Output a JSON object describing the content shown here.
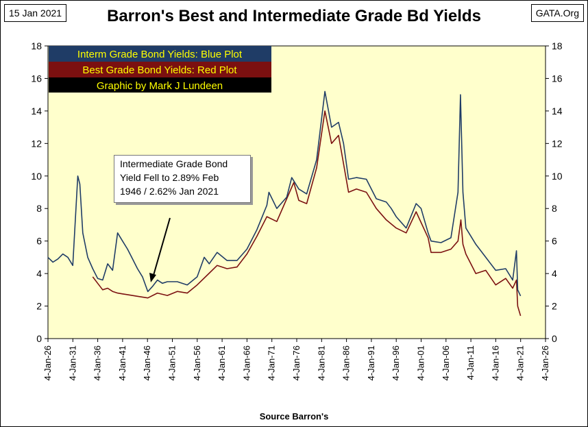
{
  "header": {
    "date_badge": "15 Jan 2021",
    "source_badge": "GATA.Org",
    "title": "Barron's Best and Intermediate Grade Bd Yields"
  },
  "footer": {
    "source": "Source Barron's"
  },
  "colors": {
    "plot_bg": "#ffffcc",
    "blue": "#1f3c66",
    "red": "#7b1010",
    "legend_blue": "#1f3c66",
    "legend_red": "#7b1010",
    "legend_black": "#000000",
    "legend_text": "#ffff00"
  },
  "chart_data": {
    "type": "line",
    "legend_position": "top-left",
    "legend": [
      "Interm Grade Bond Yields: Blue Plot",
      "Best Grade Bond Yields: Red Plot",
      "Graphic by Mark J Lundeen"
    ],
    "annotation": [
      "Intermediate Grade Bond",
      "Yield Fell to 2.89% Feb",
      "1946 / 2.62%  Jan 2021"
    ],
    "ylim": [
      0,
      18
    ],
    "y_ticks": [
      "0",
      "2",
      "4",
      "6",
      "8",
      "10",
      "12",
      "14",
      "16",
      "18"
    ],
    "x_range": [
      "1926-01-04",
      "2026-01-04"
    ],
    "x_ticks": [
      "4-Jan-26",
      "4-Jan-31",
      "4-Jan-36",
      "4-Jan-41",
      "4-Jan-46",
      "4-Jan-51",
      "4-Jan-56",
      "4-Jan-61",
      "4-Jan-66",
      "4-Jan-71",
      "4-Jan-76",
      "4-Jan-81",
      "4-Jan-86",
      "4-Jan-91",
      "4-Jan-96",
      "4-Jan-01",
      "4-Jan-06",
      "4-Jan-11",
      "4-Jan-16",
      "4-Jan-21",
      "4-Jan-26"
    ],
    "grid": false,
    "series": [
      {
        "name": "Interm Grade Bond Yields",
        "color": "#1f3c66",
        "x": [
          "1926-01",
          "1927-01",
          "1928-01",
          "1929-01",
          "1930-01",
          "1931-01",
          "1932-01",
          "1932-06",
          "1933-01",
          "1934-01",
          "1935-01",
          "1936-01",
          "1937-01",
          "1938-01",
          "1939-01",
          "1940-01",
          "1941-01",
          "1942-01",
          "1943-01",
          "1944-01",
          "1945-01",
          "1946-02",
          "1947-01",
          "1948-01",
          "1949-01",
          "1950-01",
          "1952-01",
          "1954-01",
          "1956-01",
          "1957-06",
          "1958-06",
          "1960-01",
          "1962-01",
          "1964-01",
          "1966-01",
          "1968-01",
          "1970-01",
          "1970-06",
          "1972-01",
          "1974-01",
          "1975-01",
          "1976-06",
          "1978-01",
          "1980-01",
          "1981-09",
          "1983-01",
          "1984-06",
          "1985-06",
          "1986-06",
          "1988-01",
          "1990-01",
          "1992-01",
          "1994-01",
          "1995-01",
          "1996-01",
          "1998-01",
          "2000-01",
          "2001-01",
          "2002-06",
          "2003-01",
          "2005-01",
          "2007-01",
          "2008-06",
          "2008-12",
          "2009-06",
          "2010-01",
          "2012-01",
          "2014-01",
          "2016-01",
          "2018-01",
          "2019-06",
          "2020-03",
          "2020-06",
          "2021-01"
        ],
        "y": [
          5.0,
          4.7,
          4.9,
          5.2,
          5.0,
          4.5,
          10.0,
          9.5,
          6.5,
          5.0,
          4.3,
          3.7,
          3.6,
          4.6,
          4.2,
          6.5,
          6.0,
          5.5,
          4.9,
          4.3,
          3.8,
          2.89,
          3.2,
          3.6,
          3.4,
          3.5,
          3.5,
          3.3,
          3.8,
          5.0,
          4.6,
          5.3,
          4.8,
          4.8,
          5.5,
          6.7,
          8.2,
          9.0,
          8.0,
          8.7,
          9.9,
          9.2,
          8.9,
          11.0,
          15.2,
          13.0,
          13.3,
          12.0,
          9.8,
          9.9,
          9.8,
          8.6,
          8.4,
          8.0,
          7.5,
          6.8,
          8.3,
          8.0,
          6.5,
          6.0,
          5.9,
          6.2,
          9.0,
          15.0,
          9.0,
          6.8,
          5.8,
          5.0,
          4.2,
          4.3,
          3.6,
          5.4,
          3.0,
          2.62
        ]
      },
      {
        "name": "Best Grade Bond Yields",
        "color": "#7b1010",
        "x": [
          "1935-01",
          "1936-01",
          "1937-01",
          "1938-01",
          "1939-01",
          "1940-01",
          "1941-01",
          "1942-01",
          "1944-01",
          "1946-02",
          "1948-01",
          "1950-01",
          "1952-01",
          "1954-01",
          "1956-01",
          "1958-01",
          "1960-01",
          "1962-01",
          "1964-01",
          "1966-01",
          "1968-01",
          "1970-01",
          "1972-01",
          "1974-01",
          "1975-06",
          "1976-06",
          "1978-01",
          "1980-01",
          "1981-09",
          "1983-01",
          "1984-06",
          "1986-06",
          "1988-01",
          "1990-01",
          "1992-01",
          "1994-01",
          "1996-01",
          "1998-01",
          "2000-01",
          "2002-06",
          "2003-01",
          "2005-01",
          "2007-01",
          "2008-06",
          "2009-01",
          "2009-06",
          "2010-01",
          "2012-01",
          "2014-01",
          "2016-01",
          "2018-01",
          "2019-06",
          "2020-03",
          "2020-06",
          "2021-01"
        ],
        "y": [
          3.8,
          3.4,
          3.0,
          3.1,
          2.9,
          2.8,
          2.75,
          2.7,
          2.6,
          2.5,
          2.8,
          2.65,
          2.9,
          2.8,
          3.3,
          3.9,
          4.5,
          4.3,
          4.4,
          5.2,
          6.3,
          7.5,
          7.2,
          8.6,
          9.6,
          8.5,
          8.3,
          10.5,
          14.0,
          12.0,
          12.5,
          9.0,
          9.2,
          9.0,
          8.0,
          7.3,
          6.8,
          6.5,
          7.8,
          6.2,
          5.3,
          5.3,
          5.5,
          6.0,
          7.3,
          5.8,
          5.2,
          4.0,
          4.2,
          3.3,
          3.7,
          3.1,
          3.6,
          2.0,
          1.4
        ]
      }
    ]
  }
}
